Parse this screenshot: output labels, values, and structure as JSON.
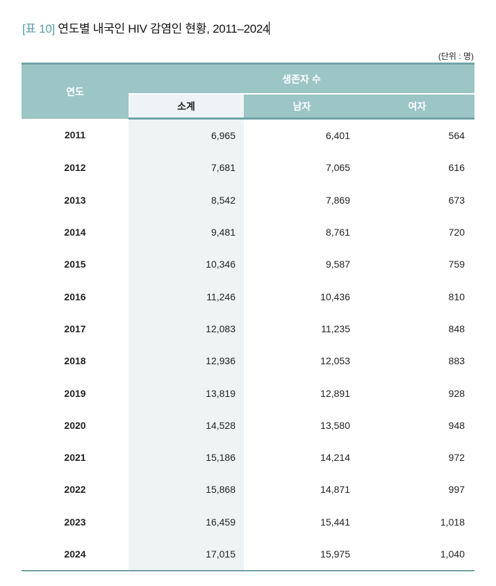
{
  "title": {
    "label": "[표 10]",
    "text": "연도별 내국인 HIV 감염인 현황, 2011–2024"
  },
  "unit": "(단위 : 명)",
  "header": {
    "year": "연도",
    "group": "생존자 수",
    "total": "소계",
    "male": "남자",
    "female": "여자"
  },
  "colors": {
    "header_bg": "#9cc5c5",
    "rule": "#6fa3a8",
    "total_bg": "#eef3f4",
    "label": "#5a9ea3"
  },
  "rows": [
    [
      "2011",
      "6,965",
      "6,401",
      "564"
    ],
    [
      "2012",
      "7,681",
      "7,065",
      "616"
    ],
    [
      "2013",
      "8,542",
      "7,869",
      "673"
    ],
    [
      "2014",
      "9,481",
      "8,761",
      "720"
    ],
    [
      "2015",
      "10,346",
      "9,587",
      "759"
    ],
    [
      "2016",
      "11,246",
      "10,436",
      "810"
    ],
    [
      "2017",
      "12,083",
      "11,235",
      "848"
    ],
    [
      "2018",
      "12,936",
      "12,053",
      "883"
    ],
    [
      "2019",
      "13,819",
      "12,891",
      "928"
    ],
    [
      "2020",
      "14,528",
      "13,580",
      "948"
    ],
    [
      "2021",
      "15,186",
      "14,214",
      "972"
    ],
    [
      "2022",
      "15,868",
      "14,871",
      "997"
    ],
    [
      "2023",
      "16,459",
      "15,441",
      "1,018"
    ],
    [
      "2024",
      "17,015",
      "15,975",
      "1,040"
    ]
  ]
}
